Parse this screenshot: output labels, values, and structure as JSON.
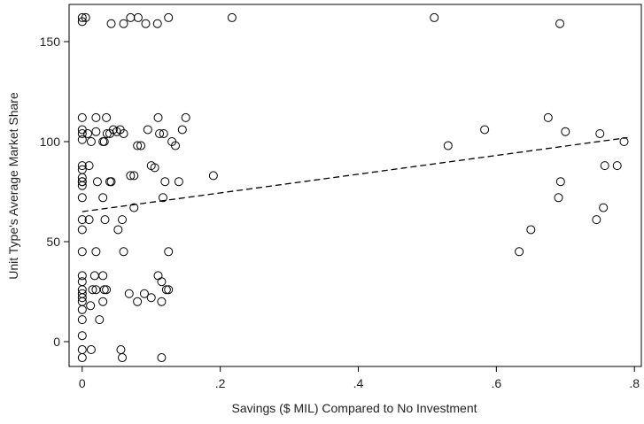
{
  "chart_data": {
    "type": "scatter",
    "xlabel": "Savings ($ MIL) Compared to No Investment",
    "ylabel": "Unit Type's Average Market Share",
    "x": [
      0,
      0,
      0.005,
      0.042,
      0.06,
      0.07,
      0.081,
      0.092,
      0.109,
      0.125,
      0.217,
      0.51,
      0.692,
      0,
      0,
      0,
      0,
      0,
      0,
      0,
      0,
      0,
      0,
      0,
      0,
      0,
      0,
      0,
      0,
      0,
      0,
      0,
      0,
      0,
      0,
      0,
      0,
      0,
      0.01,
      0.008,
      0.013,
      0.02,
      0.02,
      0.022,
      0.01,
      0.02,
      0.018,
      0.02,
      0.015,
      0.012,
      0.025,
      0.013,
      0.03,
      0.035,
      0.032,
      0.036,
      0.04,
      0.04,
      0.042,
      0.03,
      0.033,
      0.03,
      0.035,
      0.032,
      0.03,
      0.045,
      0.05,
      0.055,
      0.06,
      0.058,
      0.052,
      0.06,
      0.056,
      0.058,
      0.07,
      0.075,
      0.08,
      0.085,
      0.068,
      0.075,
      0.08,
      0.09,
      0.095,
      0.1,
      0.1,
      0.105,
      0.11,
      0.11,
      0.112,
      0.115,
      0.115,
      0.12,
      0.117,
      0.118,
      0.122,
      0.125,
      0.125,
      0.13,
      0.135,
      0.14,
      0.145,
      0.15,
      0.19,
      0.115,
      0.53,
      0.583,
      0.633,
      0.65,
      0.675,
      0.69,
      0.693,
      0.7,
      0.745,
      0.75,
      0.755,
      0.757,
      0.775,
      0.785
    ],
    "values": [
      162,
      160,
      162,
      159,
      159,
      162,
      162,
      159,
      159,
      162,
      162,
      162,
      159,
      112,
      106,
      104,
      101,
      88,
      86,
      82,
      80,
      80,
      78,
      72,
      61,
      56,
      45,
      33,
      30,
      26,
      24,
      22,
      20,
      16,
      11,
      3,
      -4,
      -8,
      88,
      104,
      100,
      112,
      105,
      80,
      61,
      45,
      33,
      26,
      26,
      18,
      11,
      -4,
      100,
      112,
      100,
      104,
      104,
      80,
      80,
      72,
      61,
      33,
      26,
      26,
      20,
      106,
      105,
      106,
      104,
      61,
      56,
      45,
      -4,
      -8,
      83,
      83,
      98,
      98,
      24,
      67,
      20,
      24,
      106,
      88,
      22,
      87,
      112,
      33,
      104,
      30,
      20,
      80,
      72,
      104,
      26,
      45,
      26,
      100,
      98,
      80,
      106,
      112,
      83,
      -8,
      98,
      106,
      45,
      56,
      112,
      72,
      80,
      105,
      61,
      104,
      67,
      88,
      88,
      100
    ],
    "fit": {
      "x": [
        0,
        0.79
      ],
      "y": [
        65,
        102
      ]
    },
    "xlim": [
      -0.019,
      0.81
    ],
    "ylim": [
      -12.4,
      168.6
    ],
    "xticks": [
      {
        "value": 0,
        "label": "0"
      },
      {
        "value": 0.2,
        "label": ".2"
      },
      {
        "value": 0.4,
        "label": ".4"
      },
      {
        "value": 0.6,
        "label": ".6"
      },
      {
        "value": 0.8,
        "label": ".8"
      }
    ],
    "yticks": [
      0,
      50,
      100,
      150
    ]
  }
}
